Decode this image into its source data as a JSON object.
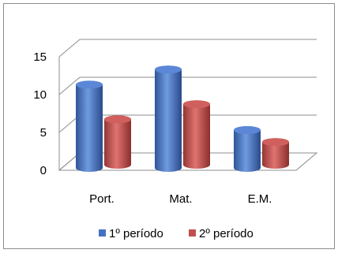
{
  "chart_data": {
    "type": "bar",
    "categories": [
      "Port.",
      "Mat.",
      "E.M."
    ],
    "series": [
      {
        "name": "1º período",
        "values": [
          11,
          13,
          5
        ],
        "color": "#4472C4"
      },
      {
        "name": "2º período",
        "values": [
          6,
          8,
          3
        ],
        "color": "#C0504D"
      }
    ],
    "ylim": [
      0,
      15
    ],
    "yticks": [
      0,
      5,
      10,
      15
    ],
    "grid": true,
    "legend": "bottom",
    "style": "3d-cylinder"
  }
}
